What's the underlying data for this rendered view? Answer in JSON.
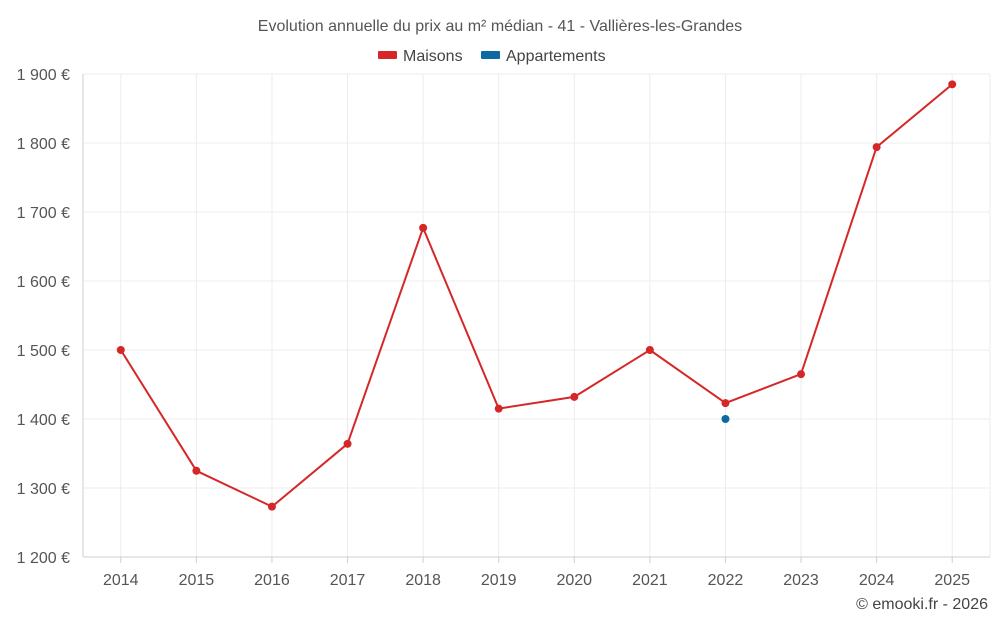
{
  "chart_data": {
    "type": "line",
    "title": "Evolution annuelle du prix au m² médian - 41 - Vallières-les-Grandes",
    "xlabel": "",
    "ylabel": "",
    "categories": [
      "2014",
      "2015",
      "2016",
      "2017",
      "2018",
      "2019",
      "2020",
      "2021",
      "2022",
      "2023",
      "2024",
      "2025"
    ],
    "ylim": [
      1200,
      1900
    ],
    "yticks": [
      1200,
      1300,
      1400,
      1500,
      1600,
      1700,
      1800,
      1900
    ],
    "ytick_labels": [
      "1 200 €",
      "1 300 €",
      "1 400 €",
      "1 500 €",
      "1 600 €",
      "1 700 €",
      "1 800 €",
      "1 900 €"
    ],
    "grid": true,
    "legend_position": "top-center",
    "series": [
      {
        "name": "Maisons",
        "color": "#d62728",
        "values": [
          1500,
          1325,
          1273,
          1364,
          1677,
          1415,
          1432,
          1500,
          1423,
          1465,
          1794,
          1885
        ]
      },
      {
        "name": "Appartements",
        "color": "#0b6aa2",
        "values": [
          null,
          null,
          null,
          null,
          null,
          null,
          null,
          null,
          1400,
          null,
          null,
          null
        ]
      }
    ]
  },
  "credit": "© emooki.fr - 2026"
}
